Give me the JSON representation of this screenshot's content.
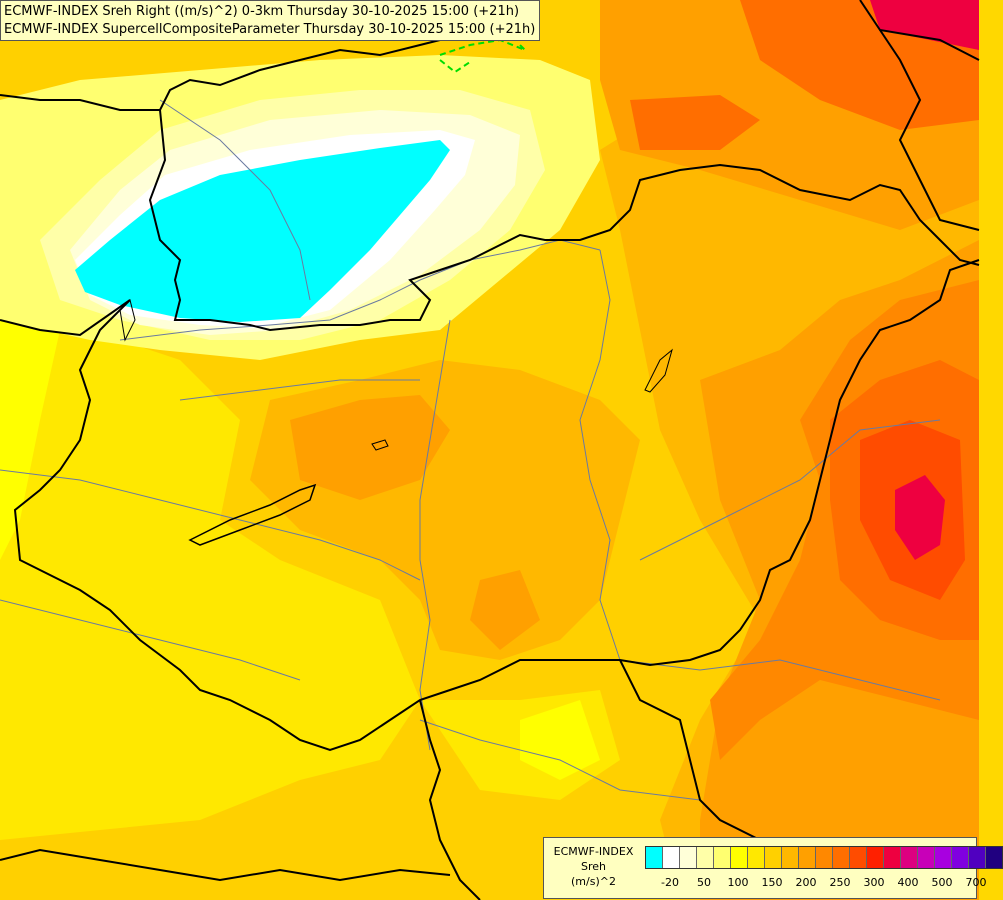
{
  "titles": {
    "line1": "ECMWF-INDEX Sreh Right ((m/s)^2) 0-3km Thursday 30-10-2025 15:00 (+21h)",
    "line2": "ECMWF-INDEX SupercellCompositeParameter Thursday 30-10-2025 15:00 (+21h)"
  },
  "legend": {
    "line1": "ECMWF-INDEX",
    "line2": "Sreh",
    "line3": "(m/s)^2",
    "colors": [
      "#00ffff",
      "#ffffff",
      "#ffffd8",
      "#ffffa8",
      "#ffff70",
      "#ffff00",
      "#ffe800",
      "#ffd000",
      "#ffb800",
      "#ffa000",
      "#ff8800",
      "#ff6e00",
      "#ff4c00",
      "#ff2000",
      "#ee0040",
      "#dd0080",
      "#c800b8",
      "#a800e0",
      "#8000e0",
      "#5000c0",
      "#200080"
    ],
    "ticks": [
      "-20",
      "50",
      "100",
      "150",
      "200",
      "250",
      "300",
      "400",
      "500",
      "700"
    ]
  }
}
